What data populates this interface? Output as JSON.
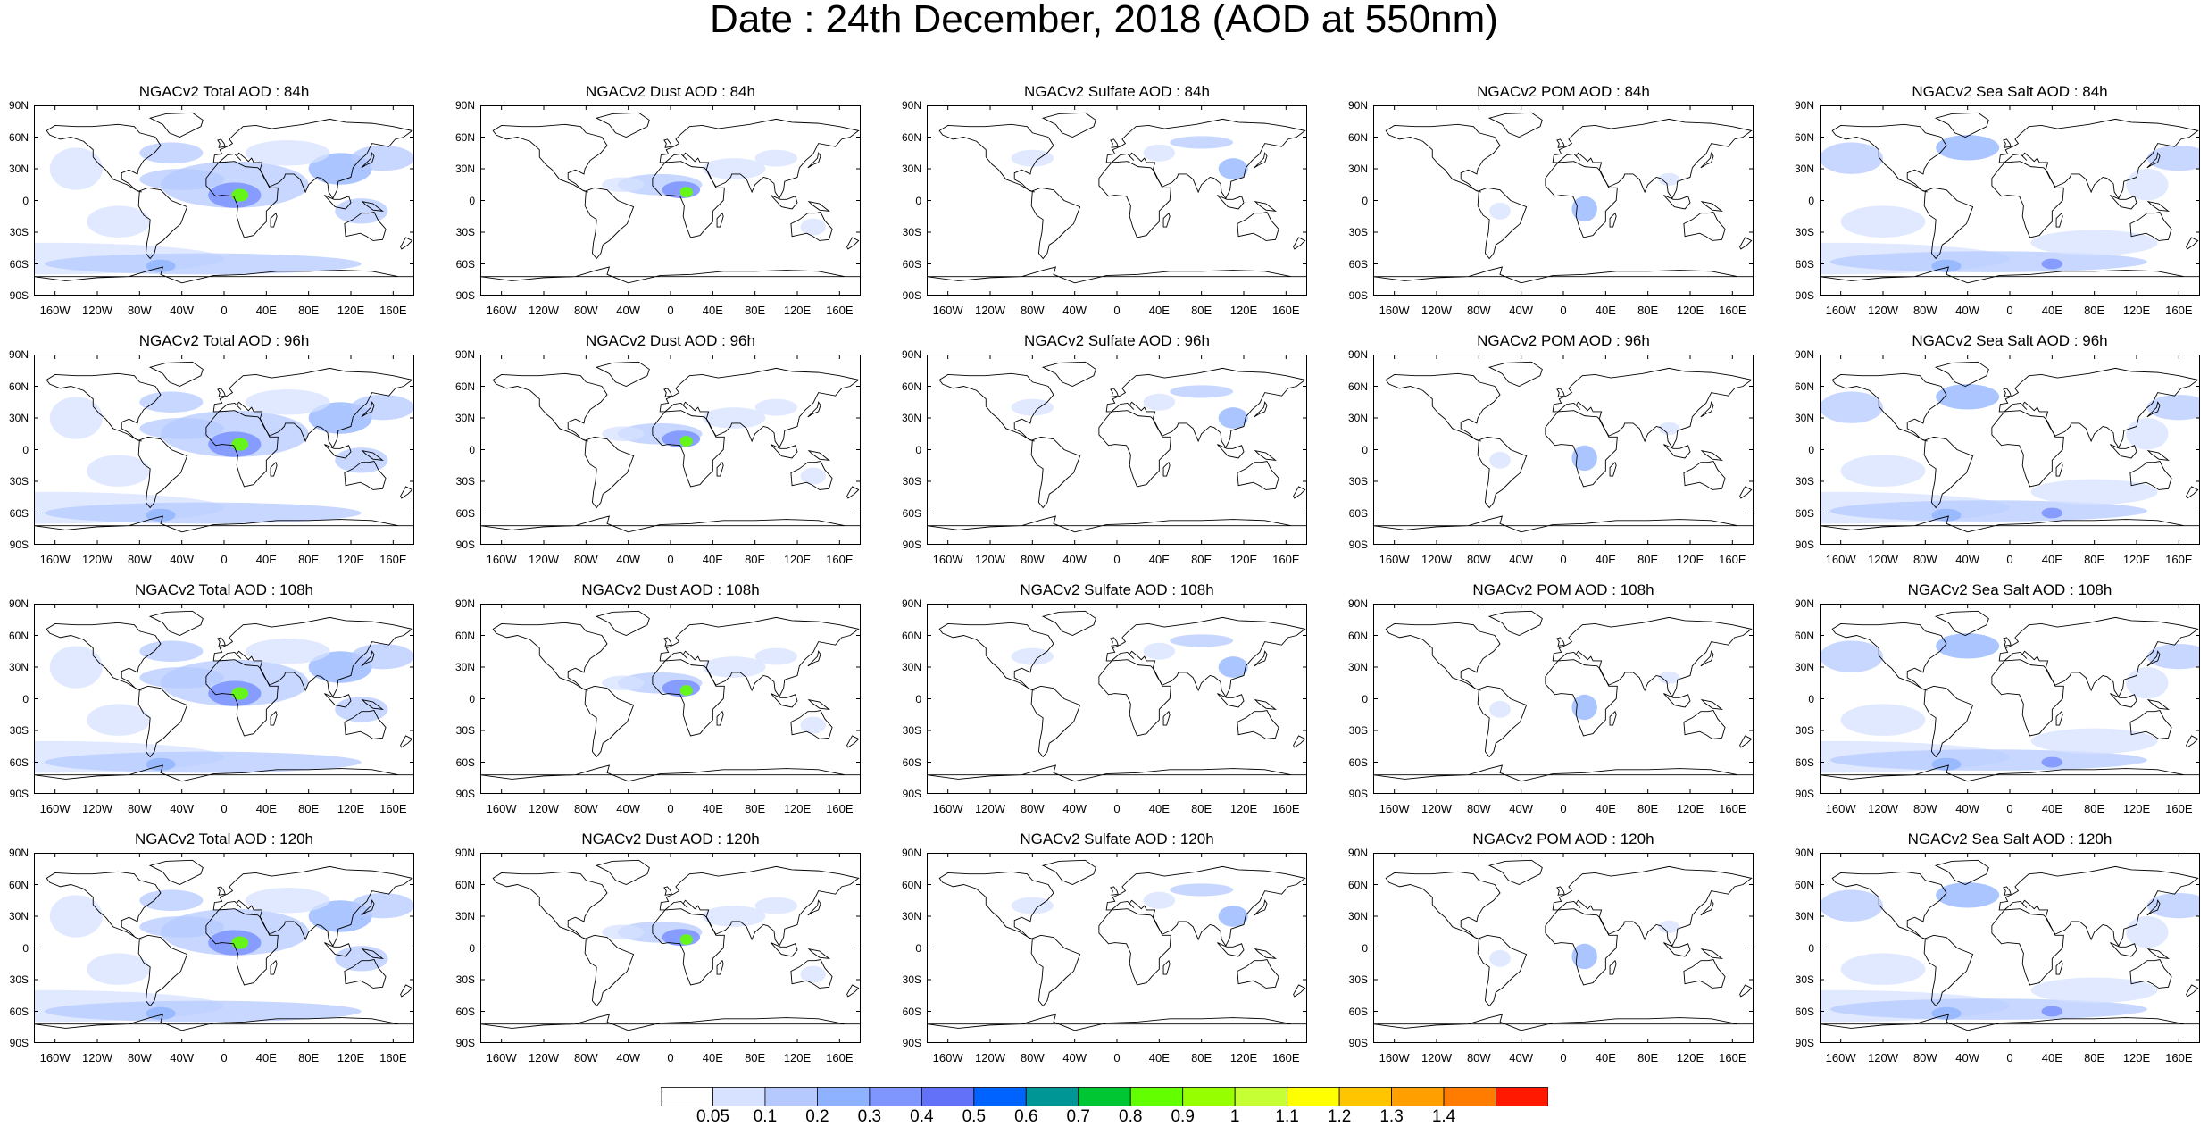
{
  "title": "Date : 24th December, 2018 (AOD at 550nm)",
  "panels": [
    {
      "title": "NGACv2 Total AOD : 84h",
      "species": "total"
    },
    {
      "title": "NGACv2 Dust AOD : 84h",
      "species": "dust"
    },
    {
      "title": "NGACv2 Sulfate AOD : 84h",
      "species": "sulfate"
    },
    {
      "title": "NGACv2 POM AOD : 84h",
      "species": "pom"
    },
    {
      "title": "NGACv2 Sea Salt AOD : 84h",
      "species": "seasalt"
    },
    {
      "title": "NGACv2 Total AOD : 96h",
      "species": "total"
    },
    {
      "title": "NGACv2 Dust AOD : 96h",
      "species": "dust"
    },
    {
      "title": "NGACv2 Sulfate AOD : 96h",
      "species": "sulfate"
    },
    {
      "title": "NGACv2 POM AOD : 96h",
      "species": "pom"
    },
    {
      "title": "NGACv2 Sea Salt AOD : 96h",
      "species": "seasalt"
    },
    {
      "title": "NGACv2 Total AOD : 108h",
      "species": "total"
    },
    {
      "title": "NGACv2 Dust AOD : 108h",
      "species": "dust"
    },
    {
      "title": "NGACv2 Sulfate AOD : 108h",
      "species": "sulfate"
    },
    {
      "title": "NGACv2 POM AOD : 108h",
      "species": "pom"
    },
    {
      "title": "NGACv2 Sea Salt AOD : 108h",
      "species": "seasalt"
    },
    {
      "title": "NGACv2 Total AOD : 120h",
      "species": "total"
    },
    {
      "title": "NGACv2 Dust AOD : 120h",
      "species": "dust"
    },
    {
      "title": "NGACv2 Sulfate AOD : 120h",
      "species": "sulfate"
    },
    {
      "title": "NGACv2 POM AOD : 120h",
      "species": "pom"
    },
    {
      "title": "NGACv2 Sea Salt  AOD : 120h",
      "species": "seasalt"
    }
  ],
  "lat_ticks": [
    "90N",
    "60N",
    "30N",
    "0",
    "30S",
    "60S",
    "90S"
  ],
  "lon_ticks": [
    "160W",
    "120W",
    "80W",
    "40W",
    "0",
    "40E",
    "80E",
    "120E",
    "160E"
  ],
  "colorbar": {
    "levels": [
      "0.05",
      "0.1",
      "0.2",
      "0.3",
      "0.4",
      "0.5",
      "0.6",
      "0.7",
      "0.8",
      "0.9",
      "1",
      "1.1",
      "1.2",
      "1.3",
      "1.4"
    ],
    "colors": [
      "#ffffff",
      "#d6e2ff",
      "#b5c9ff",
      "#8eb2ff",
      "#7f96ff",
      "#6370f8",
      "#0063ff",
      "#009696",
      "#00c633",
      "#63ff00",
      "#96ff00",
      "#c6ff33",
      "#ffff00",
      "#ffc600",
      "#ffa000",
      "#ff7c00",
      "#ff1900"
    ]
  }
}
